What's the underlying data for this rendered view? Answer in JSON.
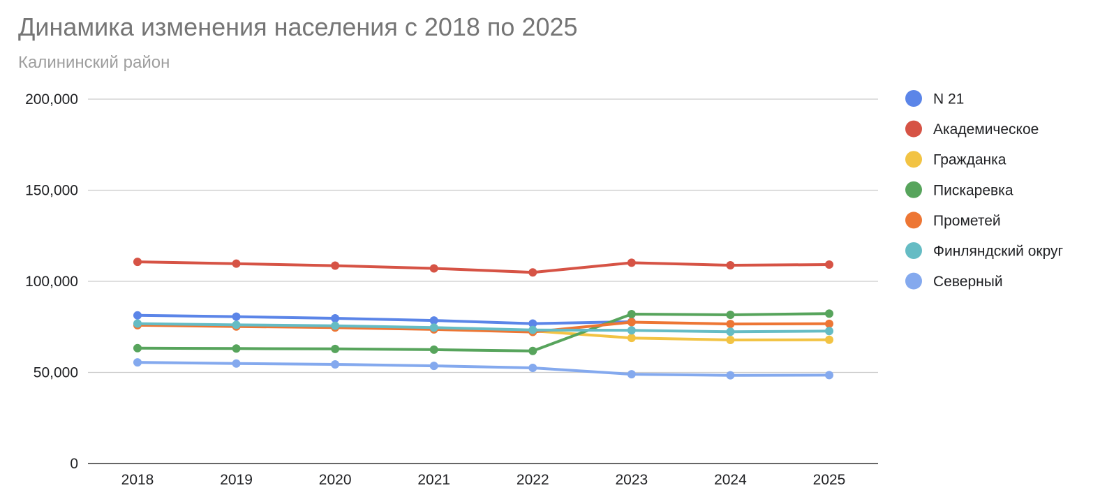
{
  "chart_data": {
    "type": "line",
    "title": "Динамика изменения населения с 2018 по 2025",
    "subtitle": "Калининский район",
    "xlabel": "",
    "ylabel": "",
    "x": [
      "2018",
      "2019",
      "2020",
      "2021",
      "2022",
      "2023",
      "2024",
      "2025"
    ],
    "ylim": [
      0,
      200000
    ],
    "yticks": [
      0,
      50000,
      100000,
      150000,
      200000
    ],
    "ytick_labels": [
      "0",
      "50,000",
      "100,000",
      "150,000",
      "200,000"
    ],
    "grid": true,
    "legend_position": "right",
    "series": [
      {
        "name": "N 21",
        "color": "#5b85e8",
        "values": [
          81300,
          80600,
          79700,
          78500,
          76800,
          77800,
          null,
          null
        ]
      },
      {
        "name": "Академическое",
        "color": "#d65345",
        "values": [
          110700,
          109700,
          108600,
          107100,
          104900,
          110200,
          108800,
          109200
        ]
      },
      {
        "name": "Гражданка",
        "color": "#f2c343",
        "values": [
          null,
          null,
          null,
          null,
          72800,
          68900,
          67800,
          67900
        ]
      },
      {
        "name": "Пискаревка",
        "color": "#57a45c",
        "values": [
          63300,
          63100,
          62900,
          62500,
          61800,
          82000,
          81600,
          82300
        ]
      },
      {
        "name": "Прометей",
        "color": "#ed7634",
        "values": [
          75900,
          75200,
          74600,
          73600,
          72200,
          77600,
          76600,
          76700
        ]
      },
      {
        "name": "Финляндский округ",
        "color": "#65bcc4",
        "values": [
          76800,
          76100,
          75600,
          74600,
          73300,
          73100,
          72300,
          72700
        ]
      },
      {
        "name": "Северный",
        "color": "#84a9ee",
        "values": [
          55500,
          54900,
          54400,
          53600,
          52500,
          49000,
          48400,
          48500
        ]
      }
    ]
  }
}
